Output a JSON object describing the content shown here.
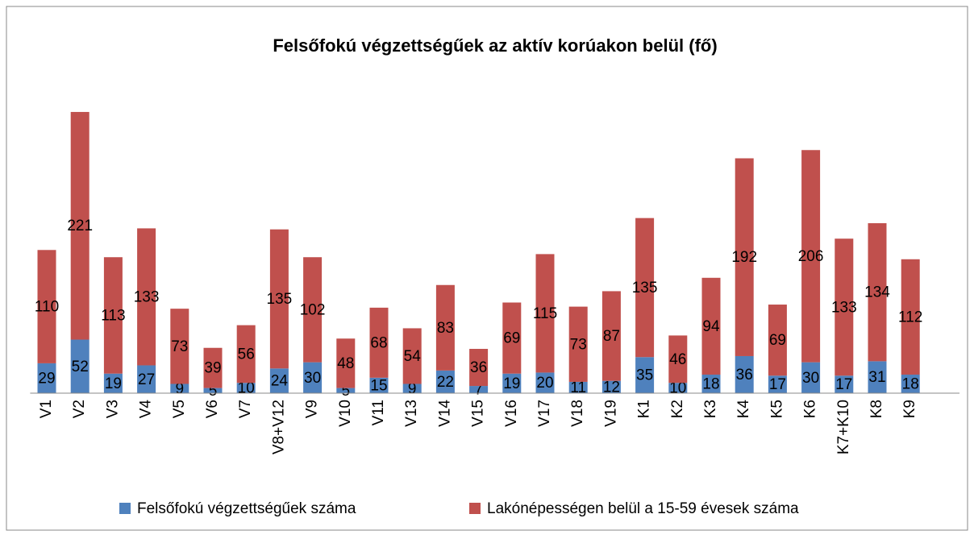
{
  "chart_data": {
    "type": "stacked_bar",
    "title": "Felsőfokú végzettségűek az aktív korúakon belül (fő)",
    "categories": [
      "V1",
      "V2",
      "V3",
      "V4",
      "V5",
      "V6",
      "V7",
      "V8+V12",
      "V9",
      "V10",
      "V11",
      "V13",
      "V14",
      "V15",
      "V16",
      "V17",
      "V18",
      "V19",
      "K1",
      "K2",
      "K3",
      "K4",
      "K5",
      "K6",
      "K7+K10",
      "K8",
      "K9"
    ],
    "series": [
      {
        "name": "Felsőfokú végzettségűek száma",
        "color": "#4f81bd",
        "values": [
          29,
          52,
          19,
          27,
          9,
          5,
          10,
          24,
          30,
          5,
          15,
          9,
          22,
          7,
          19,
          20,
          11,
          12,
          35,
          10,
          18,
          36,
          17,
          30,
          17,
          31,
          18
        ]
      },
      {
        "name": "Lakónépességen belül a 15-59 évesek száma",
        "color": "#c0504d",
        "values": [
          110,
          221,
          113,
          133,
          73,
          39,
          56,
          135,
          102,
          48,
          68,
          54,
          83,
          36,
          69,
          115,
          73,
          87,
          135,
          46,
          94,
          192,
          69,
          206,
          133,
          134,
          112
        ]
      }
    ],
    "ylim": [
      0,
      280
    ],
    "legend": "bottom"
  }
}
